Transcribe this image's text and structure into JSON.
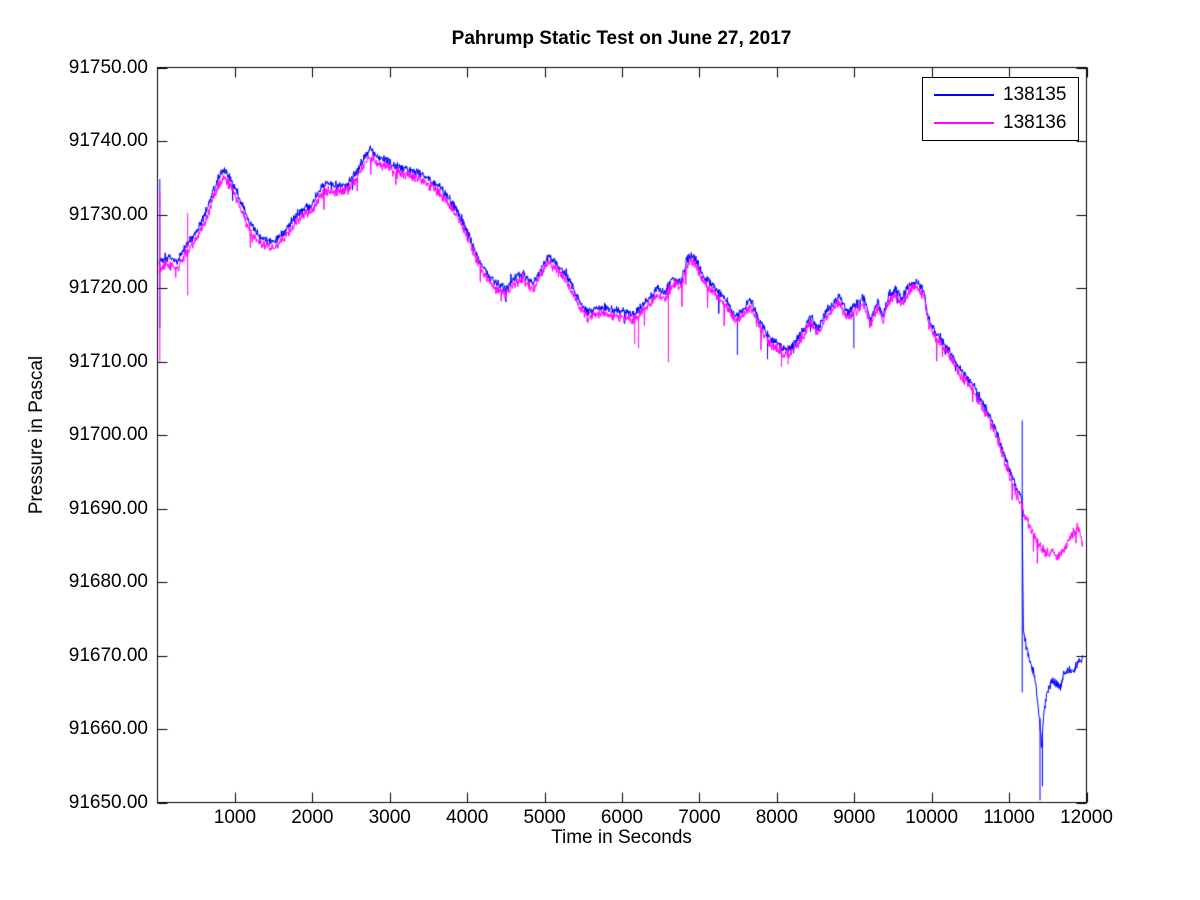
{
  "chart_data": {
    "type": "line",
    "title": "Pahrump Static Test on June 27, 2017",
    "xlabel": "Time in Seconds",
    "ylabel": "Pressure in Pascal",
    "xlim": [
      0,
      12000
    ],
    "ylim": [
      91650,
      91750
    ],
    "xticks": [
      1000,
      2000,
      3000,
      4000,
      5000,
      6000,
      7000,
      8000,
      9000,
      10000,
      11000,
      12000
    ],
    "yticks": [
      91650,
      91660,
      91670,
      91680,
      91690,
      91700,
      91710,
      91720,
      91730,
      91740,
      91750
    ],
    "ytick_decimals": 2,
    "grid": false,
    "background": "#FFFFFF",
    "axis_color": "#000000",
    "legend": {
      "position": "top-right",
      "entries": [
        "138135",
        "138136"
      ]
    },
    "t_range": [
      20,
      11950
    ],
    "series": [
      {
        "name": "138135",
        "color": "#0000FF",
        "noise_pa": 0.45,
        "downspike_rate": 0.005,
        "downspike_max_pa": 2.0,
        "keypoints": [
          [
            0,
            91723.5
          ],
          [
            100,
            91724.2
          ],
          [
            200,
            91724.0
          ],
          [
            260,
            91723.6
          ],
          [
            320,
            91725.0
          ],
          [
            420,
            91726.4
          ],
          [
            520,
            91728.0
          ],
          [
            620,
            91730.2
          ],
          [
            720,
            91733.2
          ],
          [
            800,
            91735.2
          ],
          [
            860,
            91736.0
          ],
          [
            950,
            91734.8
          ],
          [
            1050,
            91732.5
          ],
          [
            1150,
            91729.8
          ],
          [
            1250,
            91727.8
          ],
          [
            1350,
            91726.8
          ],
          [
            1500,
            91726.3
          ],
          [
            1600,
            91727.2
          ],
          [
            1700,
            91728.6
          ],
          [
            1800,
            91730.0
          ],
          [
            1900,
            91730.8
          ],
          [
            2000,
            91731.3
          ],
          [
            2100,
            91733.5
          ],
          [
            2160,
            91734.3
          ],
          [
            2300,
            91734.0
          ],
          [
            2450,
            91734.2
          ],
          [
            2560,
            91735.6
          ],
          [
            2660,
            91737.6
          ],
          [
            2750,
            91739.0
          ],
          [
            2850,
            91737.6
          ],
          [
            2950,
            91737.7
          ],
          [
            3050,
            91736.6
          ],
          [
            3150,
            91736.4
          ],
          [
            3260,
            91736.2
          ],
          [
            3360,
            91735.8
          ],
          [
            3460,
            91735.2
          ],
          [
            3560,
            91734.3
          ],
          [
            3660,
            91733.6
          ],
          [
            3760,
            91732.2
          ],
          [
            3860,
            91730.8
          ],
          [
            3960,
            91728.8
          ],
          [
            4060,
            91726.2
          ],
          [
            4160,
            91723.8
          ],
          [
            4260,
            91722.0
          ],
          [
            4360,
            91720.8
          ],
          [
            4500,
            91720.0
          ],
          [
            4620,
            91721.3
          ],
          [
            4720,
            91722.0
          ],
          [
            4850,
            91720.6
          ],
          [
            4950,
            91722.5
          ],
          [
            5050,
            91724.4
          ],
          [
            5150,
            91723.3
          ],
          [
            5250,
            91722.3
          ],
          [
            5350,
            91720.4
          ],
          [
            5450,
            91718.2
          ],
          [
            5560,
            91716.8
          ],
          [
            5660,
            91717.2
          ],
          [
            5760,
            91717.5
          ],
          [
            5860,
            91717.0
          ],
          [
            5960,
            91716.9
          ],
          [
            6060,
            91716.7
          ],
          [
            6160,
            91716.4
          ],
          [
            6260,
            91717.6
          ],
          [
            6360,
            91718.8
          ],
          [
            6460,
            91719.9
          ],
          [
            6560,
            91719.4
          ],
          [
            6660,
            91721.4
          ],
          [
            6760,
            91721.0
          ],
          [
            6850,
            91724.0
          ],
          [
            6900,
            91724.5
          ],
          [
            6960,
            91723.8
          ],
          [
            7060,
            91721.5
          ],
          [
            7160,
            91720.6
          ],
          [
            7260,
            91719.4
          ],
          [
            7360,
            91718.2
          ],
          [
            7460,
            91716.2
          ],
          [
            7560,
            91717.0
          ],
          [
            7660,
            91718.4
          ],
          [
            7760,
            91715.8
          ],
          [
            7860,
            91714.0
          ],
          [
            7960,
            91712.8
          ],
          [
            8060,
            91712.0
          ],
          [
            8160,
            91711.6
          ],
          [
            8260,
            91713.0
          ],
          [
            8360,
            91714.5
          ],
          [
            8430,
            91716.3
          ],
          [
            8530,
            91714.4
          ],
          [
            8650,
            91717.0
          ],
          [
            8800,
            91718.9
          ],
          [
            8920,
            91716.6
          ],
          [
            9000,
            91717.5
          ],
          [
            9120,
            91718.7
          ],
          [
            9210,
            91715.5
          ],
          [
            9300,
            91718.2
          ],
          [
            9370,
            91716.3
          ],
          [
            9450,
            91719.2
          ],
          [
            9550,
            91719.8
          ],
          [
            9610,
            91718.6
          ],
          [
            9730,
            91720.6
          ],
          [
            9800,
            91721.1
          ],
          [
            9900,
            91719.6
          ],
          [
            9960,
            91715.8
          ],
          [
            10050,
            91714.0
          ],
          [
            10150,
            91712.8
          ],
          [
            10250,
            91711.2
          ],
          [
            10350,
            91709.2
          ],
          [
            10450,
            91708.0
          ],
          [
            10550,
            91706.6
          ],
          [
            10650,
            91704.6
          ],
          [
            10750,
            91702.6
          ],
          [
            10850,
            91700.2
          ],
          [
            10950,
            91697.0
          ],
          [
            11050,
            91694.0
          ],
          [
            11120,
            91692.2
          ],
          [
            11168,
            91691.2
          ],
          [
            11185,
            91673.5
          ],
          [
            11230,
            91670.8
          ],
          [
            11290,
            91668.6
          ],
          [
            11345,
            91666.2
          ],
          [
            11390,
            91661.5
          ],
          [
            11420,
            91657.5
          ],
          [
            11455,
            91662.8
          ],
          [
            11500,
            91665.5
          ],
          [
            11560,
            91666.6
          ],
          [
            11620,
            91666.2
          ],
          [
            11660,
            91665.6
          ],
          [
            11700,
            91667.4
          ],
          [
            11760,
            91668.0
          ],
          [
            11820,
            91668.0
          ],
          [
            11880,
            91668.8
          ],
          [
            11950,
            91669.8
          ]
        ],
        "spike_events": [
          [
            30,
            91714.5,
            91734.8
          ],
          [
            7490,
            91710.9,
            91716.5
          ],
          [
            7880,
            91710.3,
            91714.2
          ],
          [
            8995,
            91711.8,
            91716.6
          ],
          [
            11170,
            91665.0,
            91702.0
          ],
          [
            11400,
            91650.3,
            91661.5
          ],
          [
            11432,
            91652.2,
            91659.5
          ]
        ]
      },
      {
        "name": "138136",
        "color": "#FF00FF",
        "noise_pa": 0.5,
        "downspike_rate": 0.012,
        "downspike_max_pa": 2.4,
        "keypoints": [
          [
            0,
            91722.4
          ],
          [
            100,
            91723.2
          ],
          [
            200,
            91723.0
          ],
          [
            260,
            91722.6
          ],
          [
            320,
            91724.0
          ],
          [
            420,
            91725.4
          ],
          [
            520,
            91727.0
          ],
          [
            620,
            91729.2
          ],
          [
            720,
            91732.2
          ],
          [
            800,
            91734.2
          ],
          [
            860,
            91735.0
          ],
          [
            950,
            91733.8
          ],
          [
            1050,
            91731.5
          ],
          [
            1150,
            91728.8
          ],
          [
            1250,
            91726.9
          ],
          [
            1350,
            91725.9
          ],
          [
            1500,
            91725.4
          ],
          [
            1600,
            91726.3
          ],
          [
            1700,
            91727.7
          ],
          [
            1800,
            91729.0
          ],
          [
            1900,
            91729.9
          ],
          [
            2000,
            91730.4
          ],
          [
            2100,
            91732.5
          ],
          [
            2160,
            91733.3
          ],
          [
            2300,
            91733.0
          ],
          [
            2450,
            91733.3
          ],
          [
            2560,
            91734.7
          ],
          [
            2660,
            91736.7
          ],
          [
            2750,
            91738.1
          ],
          [
            2850,
            91736.7
          ],
          [
            2950,
            91736.8
          ],
          [
            3050,
            91735.8
          ],
          [
            3150,
            91735.6
          ],
          [
            3260,
            91735.4
          ],
          [
            3360,
            91735.0
          ],
          [
            3460,
            91734.4
          ],
          [
            3560,
            91733.5
          ],
          [
            3660,
            91732.8
          ],
          [
            3760,
            91731.4
          ],
          [
            3860,
            91730.0
          ],
          [
            3960,
            91728.0
          ],
          [
            4060,
            91725.4
          ],
          [
            4160,
            91723.0
          ],
          [
            4260,
            91721.2
          ],
          [
            4360,
            91720.0
          ],
          [
            4500,
            91719.2
          ],
          [
            4620,
            91720.5
          ],
          [
            4720,
            91721.2
          ],
          [
            4850,
            91719.8
          ],
          [
            4950,
            91721.7
          ],
          [
            5050,
            91723.6
          ],
          [
            5150,
            91722.5
          ],
          [
            5250,
            91721.5
          ],
          [
            5350,
            91719.6
          ],
          [
            5450,
            91717.4
          ],
          [
            5560,
            91716.0
          ],
          [
            5660,
            91716.4
          ],
          [
            5760,
            91716.7
          ],
          [
            5860,
            91716.2
          ],
          [
            5960,
            91716.1
          ],
          [
            6060,
            91715.9
          ],
          [
            6160,
            91715.6
          ],
          [
            6260,
            91716.8
          ],
          [
            6360,
            91718.0
          ],
          [
            6460,
            91719.1
          ],
          [
            6560,
            91718.6
          ],
          [
            6660,
            91720.6
          ],
          [
            6760,
            91720.2
          ],
          [
            6850,
            91723.2
          ],
          [
            6900,
            91723.7
          ],
          [
            6960,
            91723.0
          ],
          [
            7060,
            91720.7
          ],
          [
            7160,
            91719.8
          ],
          [
            7260,
            91718.6
          ],
          [
            7360,
            91717.4
          ],
          [
            7460,
            91715.4
          ],
          [
            7560,
            91716.2
          ],
          [
            7660,
            91717.6
          ],
          [
            7760,
            91715.0
          ],
          [
            7860,
            91713.2
          ],
          [
            7960,
            91712.0
          ],
          [
            8060,
            91711.2
          ],
          [
            8160,
            91710.9
          ],
          [
            8260,
            91712.2
          ],
          [
            8360,
            91713.7
          ],
          [
            8430,
            91715.5
          ],
          [
            8530,
            91713.6
          ],
          [
            8650,
            91716.2
          ],
          [
            8800,
            91718.1
          ],
          [
            8920,
            91715.8
          ],
          [
            9000,
            91716.7
          ],
          [
            9120,
            91717.9
          ],
          [
            9210,
            91714.8
          ],
          [
            9300,
            91717.4
          ],
          [
            9370,
            91715.5
          ],
          [
            9450,
            91718.4
          ],
          [
            9550,
            91719.0
          ],
          [
            9610,
            91717.8
          ],
          [
            9730,
            91719.8
          ],
          [
            9800,
            91720.3
          ],
          [
            9900,
            91718.8
          ],
          [
            9960,
            91715.0
          ],
          [
            10050,
            91713.2
          ],
          [
            10150,
            91712.0
          ],
          [
            10250,
            91710.4
          ],
          [
            10350,
            91708.4
          ],
          [
            10450,
            91707.2
          ],
          [
            10550,
            91705.8
          ],
          [
            10650,
            91703.8
          ],
          [
            10750,
            91701.8
          ],
          [
            10850,
            91699.4
          ],
          [
            10950,
            91696.2
          ],
          [
            11050,
            91693.2
          ],
          [
            11120,
            91691.4
          ],
          [
            11170,
            91690.0
          ],
          [
            11220,
            91688.6
          ],
          [
            11270,
            91687.6
          ],
          [
            11320,
            91686.4
          ],
          [
            11370,
            91685.2
          ],
          [
            11420,
            91684.6
          ],
          [
            11470,
            91684.0
          ],
          [
            11520,
            91683.8
          ],
          [
            11570,
            91684.2
          ],
          [
            11620,
            91683.2
          ],
          [
            11660,
            91683.8
          ],
          [
            11700,
            91684.4
          ],
          [
            11740,
            91685.0
          ],
          [
            11790,
            91686.2
          ],
          [
            11840,
            91686.9
          ],
          [
            11890,
            91687.0
          ],
          [
            11925,
            91686.6
          ],
          [
            11950,
            91685.0
          ]
        ],
        "spike_events": [
          [
            30,
            91710.0,
            91733.0
          ],
          [
            390,
            91719.0,
            91730.2
          ],
          [
            6165,
            91712.4,
            91716.4
          ],
          [
            6215,
            91711.8,
            91716.2
          ],
          [
            6600,
            91709.9,
            91720.5
          ],
          [
            8060,
            91709.3,
            91712.4
          ],
          [
            8145,
            91709.6,
            91712.2
          ]
        ]
      }
    ]
  }
}
